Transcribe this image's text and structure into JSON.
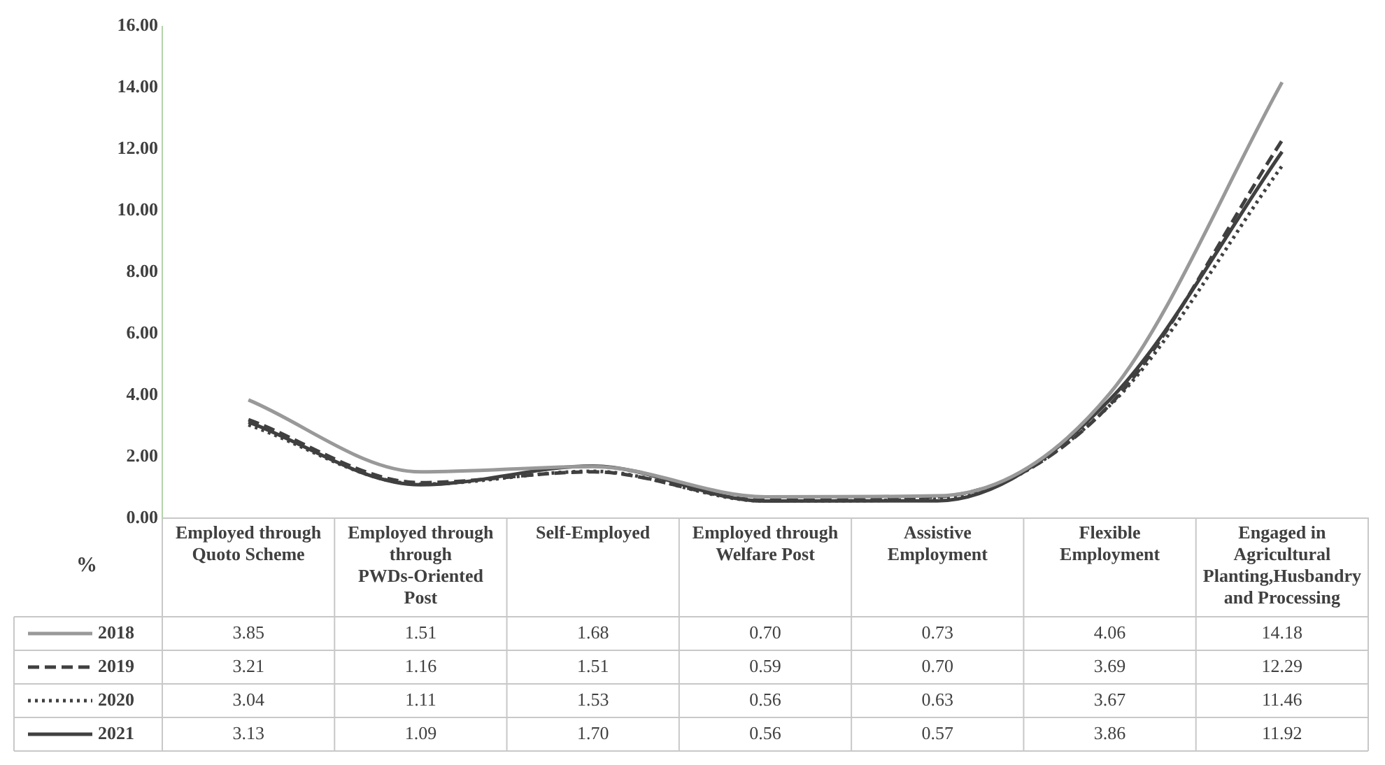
{
  "chart_data": {
    "type": "line",
    "ylabel": "%",
    "categories": [
      "Employed through Quoto Scheme",
      "Employed through through PWDs-Oriented Post",
      "Self-Employed",
      "Employed through Welfare Post",
      "Assistive Employment",
      "Flexible Employment",
      "Engaged in Agricultural Planting,Husbandry and Processing"
    ],
    "series": [
      {
        "name": "2018",
        "color": "#999999",
        "line_style": "solid",
        "values": [
          3.85,
          1.51,
          1.68,
          0.7,
          0.73,
          4.06,
          14.18
        ],
        "value_labels": [
          "3.85",
          "1.51",
          "1.68",
          "0.70",
          "0.73",
          "4.06",
          "14.18"
        ]
      },
      {
        "name": "2019",
        "color": "#404040",
        "line_style": "dashed",
        "values": [
          3.21,
          1.16,
          1.51,
          0.59,
          0.7,
          3.69,
          12.29
        ],
        "value_labels": [
          "3.21",
          "1.16",
          "1.51",
          "0.59",
          "0.70",
          "3.69",
          "12.29"
        ]
      },
      {
        "name": "2020",
        "color": "#404040",
        "line_style": "dotted",
        "values": [
          3.04,
          1.11,
          1.53,
          0.56,
          0.63,
          3.67,
          11.46
        ],
        "value_labels": [
          "3.04",
          "1.11",
          "1.53",
          "0.56",
          "0.63",
          "3.67",
          "11.46"
        ]
      },
      {
        "name": "2021",
        "color": "#404040",
        "line_style": "solid",
        "values": [
          3.13,
          1.09,
          1.7,
          0.56,
          0.57,
          3.86,
          11.92
        ],
        "value_labels": [
          "3.13",
          "1.09",
          "1.70",
          "0.56",
          "0.57",
          "3.86",
          "11.92"
        ]
      }
    ],
    "ylim": [
      0,
      16
    ],
    "yticks": [
      {
        "value": 0,
        "label": "0.00"
      },
      {
        "value": 2,
        "label": "2.00"
      },
      {
        "value": 4,
        "label": "4.00"
      },
      {
        "value": 6,
        "label": "6.00"
      },
      {
        "value": 8,
        "label": "8.00"
      },
      {
        "value": 10,
        "label": "10.00"
      },
      {
        "value": 12,
        "label": "12.00"
      },
      {
        "value": 14,
        "label": "14.00"
      },
      {
        "value": 16,
        "label": "16.00"
      }
    ],
    "grid": false,
    "legend": "bottom left",
    "marker": "none"
  }
}
